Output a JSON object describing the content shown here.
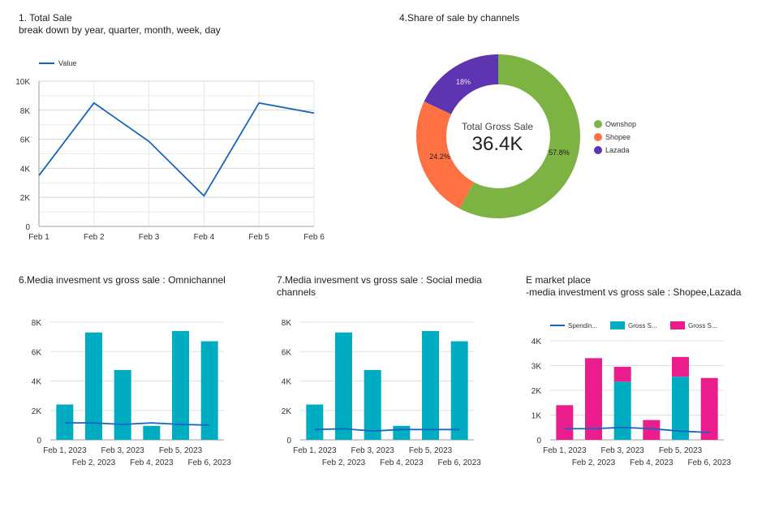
{
  "charts": {
    "total_sale": {
      "title_line1": "1. Total Sale",
      "title_line2": "break down by year, quarter, month, week, day",
      "chart_data": {
        "type": "line",
        "categories": [
          "Feb 1",
          "Feb 2",
          "Feb 3",
          "Feb 4",
          "Feb 5",
          "Feb 6"
        ],
        "series": [
          {
            "name": "Value",
            "values": [
              3500,
              8500,
              5850,
              2100,
              8500,
              7800
            ],
            "color": "#1565c0"
          }
        ],
        "yticks": [
          "0",
          "2K",
          "4K",
          "6K",
          "8K",
          "10K"
        ],
        "ylim": [
          0,
          10000
        ]
      }
    },
    "share_channels": {
      "title": "4.Share of sale by channels",
      "center_label": "Total Gross Sale",
      "center_value": "36.4K",
      "chart_data": {
        "type": "pie",
        "slices": [
          {
            "name": "Ownshop",
            "value": 57.8,
            "label": "57.8%",
            "color": "#7cb342"
          },
          {
            "name": "Shopee",
            "value": 24.2,
            "label": "24.2%",
            "color": "#ff7043"
          },
          {
            "name": "Lazada",
            "value": 18.0,
            "label": "18%",
            "color": "#5e35b1"
          }
        ]
      }
    },
    "omnichannel": {
      "title": "6.Media invesment vs gross sale : Omnichannel",
      "chart_data": {
        "type": "bar",
        "categories": [
          "Feb 1, 2023",
          "Feb 2, 2023",
          "Feb 3, 2023",
          "Feb 4, 2023",
          "Feb 5, 2023",
          "Feb 6, 2023"
        ],
        "bars": [
          2400,
          7300,
          4750,
          950,
          7400,
          6700
        ],
        "line": [
          1150,
          1150,
          1050,
          1150,
          1050,
          1000
        ],
        "bar_color": "#00acc1",
        "line_color": "#1565c0",
        "yticks": [
          "0",
          "2K",
          "4K",
          "6K",
          "8K"
        ],
        "ylim": [
          0,
          8000
        ]
      }
    },
    "social": {
      "title_line1": "7.Media invesment vs gross sale : Social media",
      "title_line2": "channels",
      "chart_data": {
        "type": "bar",
        "categories": [
          "Feb 1, 2023",
          "Feb 2, 2023",
          "Feb 3, 2023",
          "Feb 4, 2023",
          "Feb 5, 2023",
          "Feb 6, 2023"
        ],
        "bars": [
          2400,
          7300,
          4750,
          950,
          7400,
          6700
        ],
        "line": [
          700,
          750,
          600,
          700,
          700,
          700
        ],
        "bar_color": "#00acc1",
        "line_color": "#1565c0",
        "yticks": [
          "0",
          "2K",
          "4K",
          "6K",
          "8K"
        ],
        "ylim": [
          0,
          8000
        ]
      }
    },
    "emarket": {
      "title_line1": "E market place",
      "title_line2": "-media investment vs gross sale : Shopee,Lazada",
      "chart_data": {
        "type": "bar",
        "stacked": true,
        "categories": [
          "Feb 1, 2023",
          "Feb 2, 2023",
          "Feb 3, 2023",
          "Feb 4, 2023",
          "Feb 5, 2023",
          "Feb 6, 2023"
        ],
        "series": [
          {
            "name": "Gross S...",
            "values": [
              0,
              0,
              2350,
              0,
              2550,
              0
            ],
            "color": "#00acc1"
          },
          {
            "name": "Gross S...",
            "values": [
              1400,
              3300,
              600,
              800,
              800,
              2500
            ],
            "color": "#e91e8c"
          }
        ],
        "line": {
          "name": "Spendin...",
          "values": [
            450,
            450,
            500,
            450,
            350,
            300
          ],
          "color": "#1565c0"
        },
        "yticks": [
          "0",
          "1K",
          "2K",
          "3K",
          "4K"
        ],
        "ylim": [
          0,
          4000
        ]
      }
    }
  }
}
